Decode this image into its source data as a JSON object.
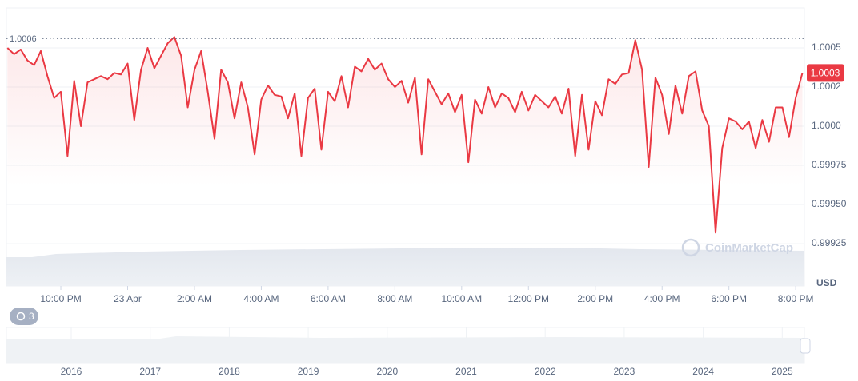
{
  "chart_data": {
    "type": "line",
    "x": [
      20.4,
      20.6,
      20.8,
      21.0,
      21.2,
      21.4,
      21.6,
      21.8,
      22.0,
      22.2,
      22.4,
      22.6,
      22.8,
      23.0,
      23.2,
      23.4,
      23.6,
      23.8,
      24.0,
      24.2,
      24.4,
      24.6,
      24.8,
      25.0,
      25.2,
      25.4,
      25.6,
      25.8,
      26.0,
      26.2,
      26.4,
      26.6,
      26.8,
      27.0,
      27.2,
      27.4,
      27.6,
      27.8,
      28.0,
      28.2,
      28.4,
      28.6,
      28.8,
      29.0,
      29.2,
      29.4,
      29.6,
      29.8,
      30.0,
      30.2,
      30.4,
      30.6,
      30.8,
      31.0,
      31.2,
      31.4,
      31.6,
      31.8,
      32.0,
      32.2,
      32.4,
      32.6,
      32.8,
      33.0,
      33.2,
      33.4,
      33.6,
      33.8,
      34.0,
      34.2,
      34.4,
      34.6,
      34.8,
      35.0,
      35.2,
      35.4,
      35.6,
      35.8,
      36.0,
      36.2,
      36.4,
      36.6,
      36.8,
      37.0,
      37.2,
      37.4,
      37.6,
      37.8,
      38.0,
      38.2,
      38.4,
      38.6,
      38.8,
      39.0,
      39.2,
      39.4,
      39.6,
      39.8,
      40.0,
      40.2,
      40.4,
      40.6,
      40.8,
      41.0,
      41.2,
      41.4,
      41.6,
      41.8,
      42.0,
      42.2,
      42.4,
      42.6,
      42.8,
      43.0,
      43.2,
      43.4,
      43.6,
      43.8,
      44.0,
      44.2
    ],
    "series": [
      {
        "name": "USD",
        "color": "#ea3943",
        "values": [
          1.0005,
          1.00046,
          1.00049,
          1.00042,
          1.00039,
          1.00048,
          1.00032,
          1.00018,
          1.00022,
          0.99981,
          1.00029,
          1.0,
          1.00028,
          1.0003,
          1.00032,
          1.0003,
          1.00034,
          1.00033,
          1.0004,
          1.00004,
          1.00036,
          1.0005,
          1.00037,
          1.00045,
          1.00053,
          1.00057,
          1.00045,
          1.00012,
          1.00036,
          1.00048,
          1.00022,
          0.99992,
          1.00036,
          1.00028,
          1.00005,
          1.00028,
          1.00012,
          0.99982,
          1.00017,
          1.00026,
          1.0002,
          1.00019,
          1.00005,
          1.00021,
          0.99981,
          1.00018,
          1.00024,
          0.99985,
          1.00022,
          1.00016,
          1.00032,
          1.00012,
          1.00038,
          1.00035,
          1.00043,
          1.00036,
          1.0004,
          1.0003,
          1.00025,
          1.00029,
          1.00015,
          1.00031,
          0.99982,
          1.0003,
          1.00022,
          1.00014,
          1.00021,
          1.00009,
          1.0002,
          0.99977,
          1.00017,
          1.00008,
          1.00025,
          1.00012,
          1.00021,
          1.00018,
          1.00009,
          1.00022,
          1.0001,
          1.0002,
          1.00016,
          1.00012,
          1.00019,
          1.00008,
          1.00024,
          0.99981,
          1.0002,
          0.99985,
          1.00016,
          1.00007,
          1.0003,
          1.00027,
          1.00033,
          1.00034,
          1.00055,
          1.00036,
          0.99974,
          1.00031,
          1.0002,
          0.99995,
          1.00026,
          1.00008,
          1.00032,
          1.00035,
          1.0001,
          1.0,
          0.99932,
          0.99986,
          1.00005,
          1.00003,
          0.99998,
          1.00003,
          0.99986,
          1.00004,
          0.9999,
          1.00012,
          1.00012,
          0.99993,
          1.00018,
          1.00034
        ]
      }
    ],
    "xlim": [
      20.37,
      44.26
    ],
    "xticks": [
      {
        "value": 22,
        "label": "10:00 PM"
      },
      {
        "value": 24,
        "label": "23 Apr"
      },
      {
        "value": 26,
        "label": "2:00 AM"
      },
      {
        "value": 28,
        "label": "4:00 AM"
      },
      {
        "value": 30,
        "label": "6:00 AM"
      },
      {
        "value": 32,
        "label": "8:00 AM"
      },
      {
        "value": 34,
        "label": "10:00 AM"
      },
      {
        "value": 36,
        "label": "12:00 PM"
      },
      {
        "value": 38,
        "label": "2:00 PM"
      },
      {
        "value": 40,
        "label": "4:00 PM"
      },
      {
        "value": 42,
        "label": "6:00 PM"
      },
      {
        "value": 44,
        "label": "8:00 PM"
      }
    ],
    "ylim": [
      0.99898,
      1.000755
    ],
    "yticks": [
      {
        "value": 1.0005,
        "label": "1.0005"
      },
      {
        "value": 1.00025,
        "label": "1.0002"
      },
      {
        "value": 1,
        "label": "1.0000"
      },
      0.99975,
      {
        "value": 0.9995,
        "label": "0.99950"
      },
      0.99925
    ],
    "y_axis_label": "USD",
    "max_line": {
      "value": 1.00056,
      "label": "1.0006"
    },
    "current": {
      "value": 1.00034,
      "label": "1.0003"
    },
    "watermark": "CoinMarketCap",
    "grid": true
  },
  "history_badge": "3",
  "navigator": {
    "years": [
      "2016",
      "2017",
      "2018",
      "2019",
      "2020",
      "2021",
      "2022",
      "2023",
      "2024",
      "2025"
    ]
  }
}
